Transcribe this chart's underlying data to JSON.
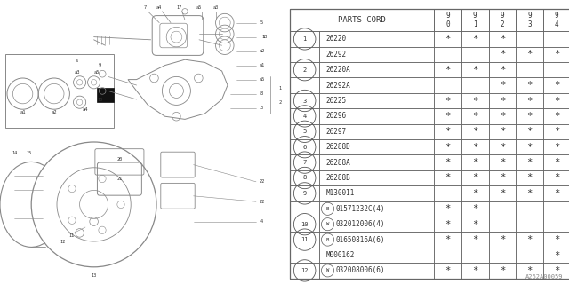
{
  "bg_color": "#ffffff",
  "table_header": "PARTS CORD",
  "year_cols": [
    "9\n0",
    "9\n1",
    "9\n2",
    "9\n3",
    "9\n4"
  ],
  "rows": [
    {
      "num": "1",
      "parts": [
        "26220",
        "26292"
      ],
      "marks": [
        [
          "*",
          "*",
          "*",
          "",
          ""
        ],
        [
          "",
          "",
          "*",
          "*",
          "*"
        ]
      ]
    },
    {
      "num": "2",
      "parts": [
        "26220A",
        "26292A"
      ],
      "marks": [
        [
          "*",
          "*",
          "*",
          "",
          ""
        ],
        [
          "",
          "",
          "*",
          "*",
          "*"
        ]
      ]
    },
    {
      "num": "3",
      "parts": [
        "26225"
      ],
      "marks": [
        [
          "*",
          "*",
          "*",
          "*",
          "*"
        ]
      ]
    },
    {
      "num": "4",
      "parts": [
        "26296"
      ],
      "marks": [
        [
          "*",
          "*",
          "*",
          "*",
          "*"
        ]
      ]
    },
    {
      "num": "5",
      "parts": [
        "26297"
      ],
      "marks": [
        [
          "*",
          "*",
          "*",
          "*",
          "*"
        ]
      ]
    },
    {
      "num": "6",
      "parts": [
        "26288D"
      ],
      "marks": [
        [
          "*",
          "*",
          "*",
          "*",
          "*"
        ]
      ]
    },
    {
      "num": "7",
      "parts": [
        "26288A"
      ],
      "marks": [
        [
          "*",
          "*",
          "*",
          "*",
          "*"
        ]
      ]
    },
    {
      "num": "8",
      "parts": [
        "26288B"
      ],
      "marks": [
        [
          "*",
          "*",
          "*",
          "*",
          "*"
        ]
      ]
    },
    {
      "num": "9",
      "parts": [
        "M130011",
        "B01571232C(4)"
      ],
      "marks": [
        [
          "",
          "*",
          "*",
          "*",
          "*"
        ],
        [
          "*",
          "*",
          "",
          "",
          ""
        ]
      ]
    },
    {
      "num": "10",
      "parts": [
        "W032012006(4)"
      ],
      "marks": [
        [
          "*",
          "*",
          "",
          "",
          ""
        ]
      ]
    },
    {
      "num": "11",
      "parts": [
        "B01650816A(6)",
        "M000162"
      ],
      "marks": [
        [
          "*",
          "*",
          "*",
          "*",
          "*"
        ],
        [
          "",
          "",
          "",
          "",
          "*"
        ]
      ]
    },
    {
      "num": "12",
      "parts": [
        "W032008006(6)"
      ],
      "marks": [
        [
          "*",
          "*",
          "*",
          "*",
          "*"
        ]
      ]
    }
  ],
  "watermark": "A262A00059",
  "line_color": "#888888",
  "text_color": "#333333",
  "table_split": 0.5
}
